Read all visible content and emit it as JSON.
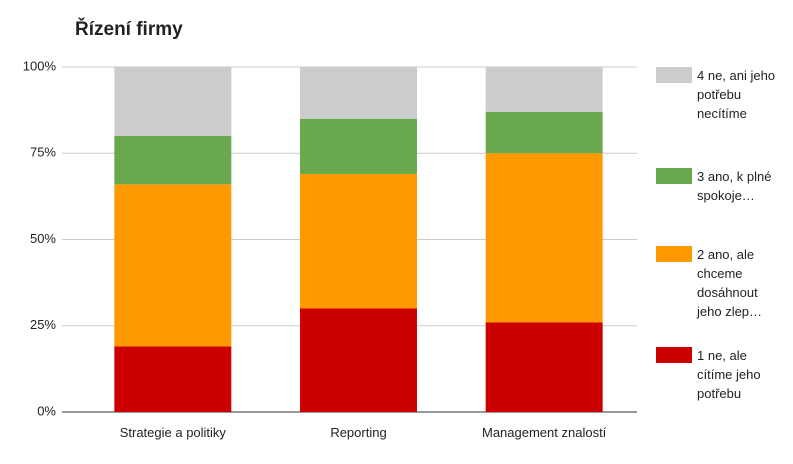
{
  "chart_data": {
    "type": "stacked-bar",
    "title": "Řízení firmy",
    "categories": [
      "Strategie a politiky",
      "Reporting",
      "Management znalostí"
    ],
    "series": [
      {
        "name": "1 ne, ale cítíme jeho potřebu",
        "color": "#cc0000",
        "values": [
          19,
          30,
          26
        ]
      },
      {
        "name": "2 ano, ale chceme dosáhnout jeho zlep…",
        "color": "#ff9900",
        "values": [
          47,
          39,
          49
        ]
      },
      {
        "name": "3 ano, k plné spokoje…",
        "color": "#6aa84f",
        "values": [
          14,
          16,
          12
        ]
      },
      {
        "name": "4 ne, ani jeho potřebu necítíme",
        "color": "#cccccc",
        "values": [
          20,
          15,
          13
        ]
      }
    ],
    "ylim": [
      0,
      100
    ],
    "yticks": [
      {
        "value": 0,
        "label": "0%"
      },
      {
        "value": 25,
        "label": "25%"
      },
      {
        "value": 50,
        "label": "50%"
      },
      {
        "value": 75,
        "label": "75%"
      },
      {
        "value": 100,
        "label": "100%"
      }
    ],
    "grid": true,
    "legend": "right"
  }
}
